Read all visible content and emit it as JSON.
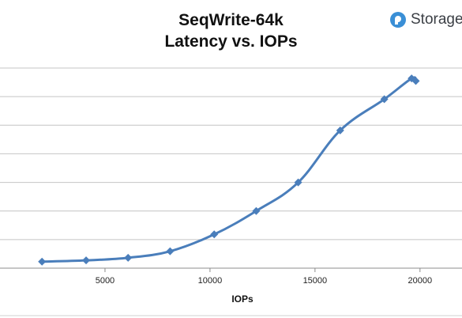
{
  "chart_data": {
    "type": "line",
    "title_line1": "SeqWrite-64k",
    "title_line2": "Latency vs. IOPs",
    "xlabel": "IOPs",
    "ylabel": "",
    "xlim": [
      0,
      22000
    ],
    "x_ticks": [
      5000,
      10000,
      15000,
      20000
    ],
    "y_gridlines": 7,
    "grid": true,
    "legend": "none",
    "line_color": "#4a7ebb",
    "series": [
      {
        "x": [
          2000,
          4100,
          6100,
          8100,
          10200,
          12200,
          14200,
          16200,
          18300,
          19600,
          19800
        ],
        "y": [
          0.25,
          0.3,
          0.4,
          0.65,
          1.3,
          2.2,
          3.3,
          5.3,
          6.5,
          7.3,
          7.2
        ]
      }
    ]
  },
  "brand": {
    "name": "Storage",
    "icon": "storagereview-logo-icon",
    "color": "#3a8fd6"
  }
}
